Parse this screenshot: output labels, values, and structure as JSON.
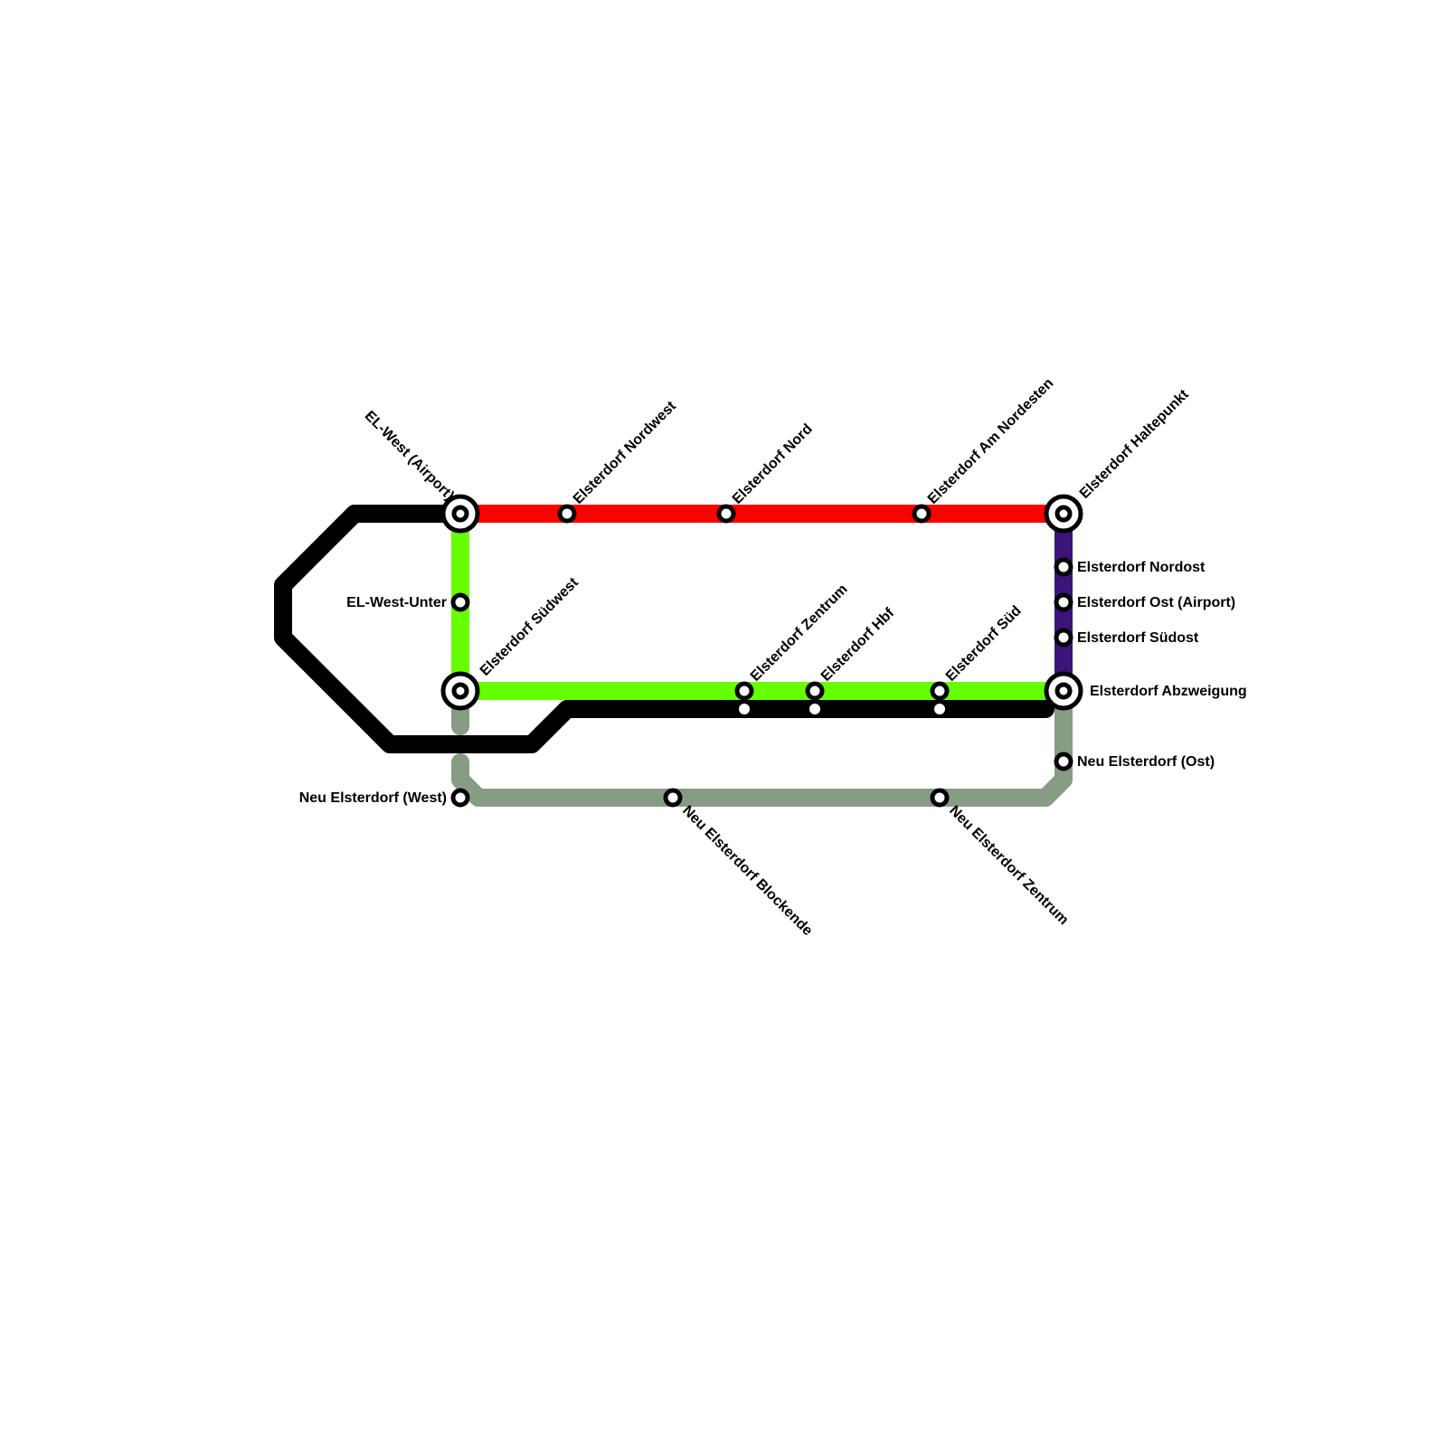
{
  "colors": {
    "red_line": "#ff0000",
    "green_line": "#66ff00",
    "black_line": "#000000",
    "purple_line": "#3a1478",
    "gray_line": "#869c84"
  },
  "stations": {
    "el_west_airport": "EL-West (Airport)",
    "nordwest": "Elsterdorf Nordwest",
    "nord": "Elsterdorf Nord",
    "am_nordesten": "Elsterdorf Am Nordesten",
    "haltepunkt": "Elsterdorf Haltepunkt",
    "nordost": "Elsterdorf Nordost",
    "ost_airport": "Elsterdorf Ost (Airport)",
    "suedost": "Elsterdorf Südost",
    "abzweigung": "Elsterdorf Abzweigung",
    "el_west_unter": "EL-West-Unter",
    "suedwest": "Elsterdorf Südwest",
    "zentrum": "Elsterdorf Zentrum",
    "hbf": "Elsterdorf Hbf",
    "sued": "Elsterdorf Süd",
    "neu_ost": "Neu Elsterdorf (Ost)",
    "neu_west": "Neu Elsterdorf (West)",
    "neu_blockende": "Neu Elsterdorf Blockende",
    "neu_zentrum": "Neu Elsterdorf Zentrum"
  }
}
